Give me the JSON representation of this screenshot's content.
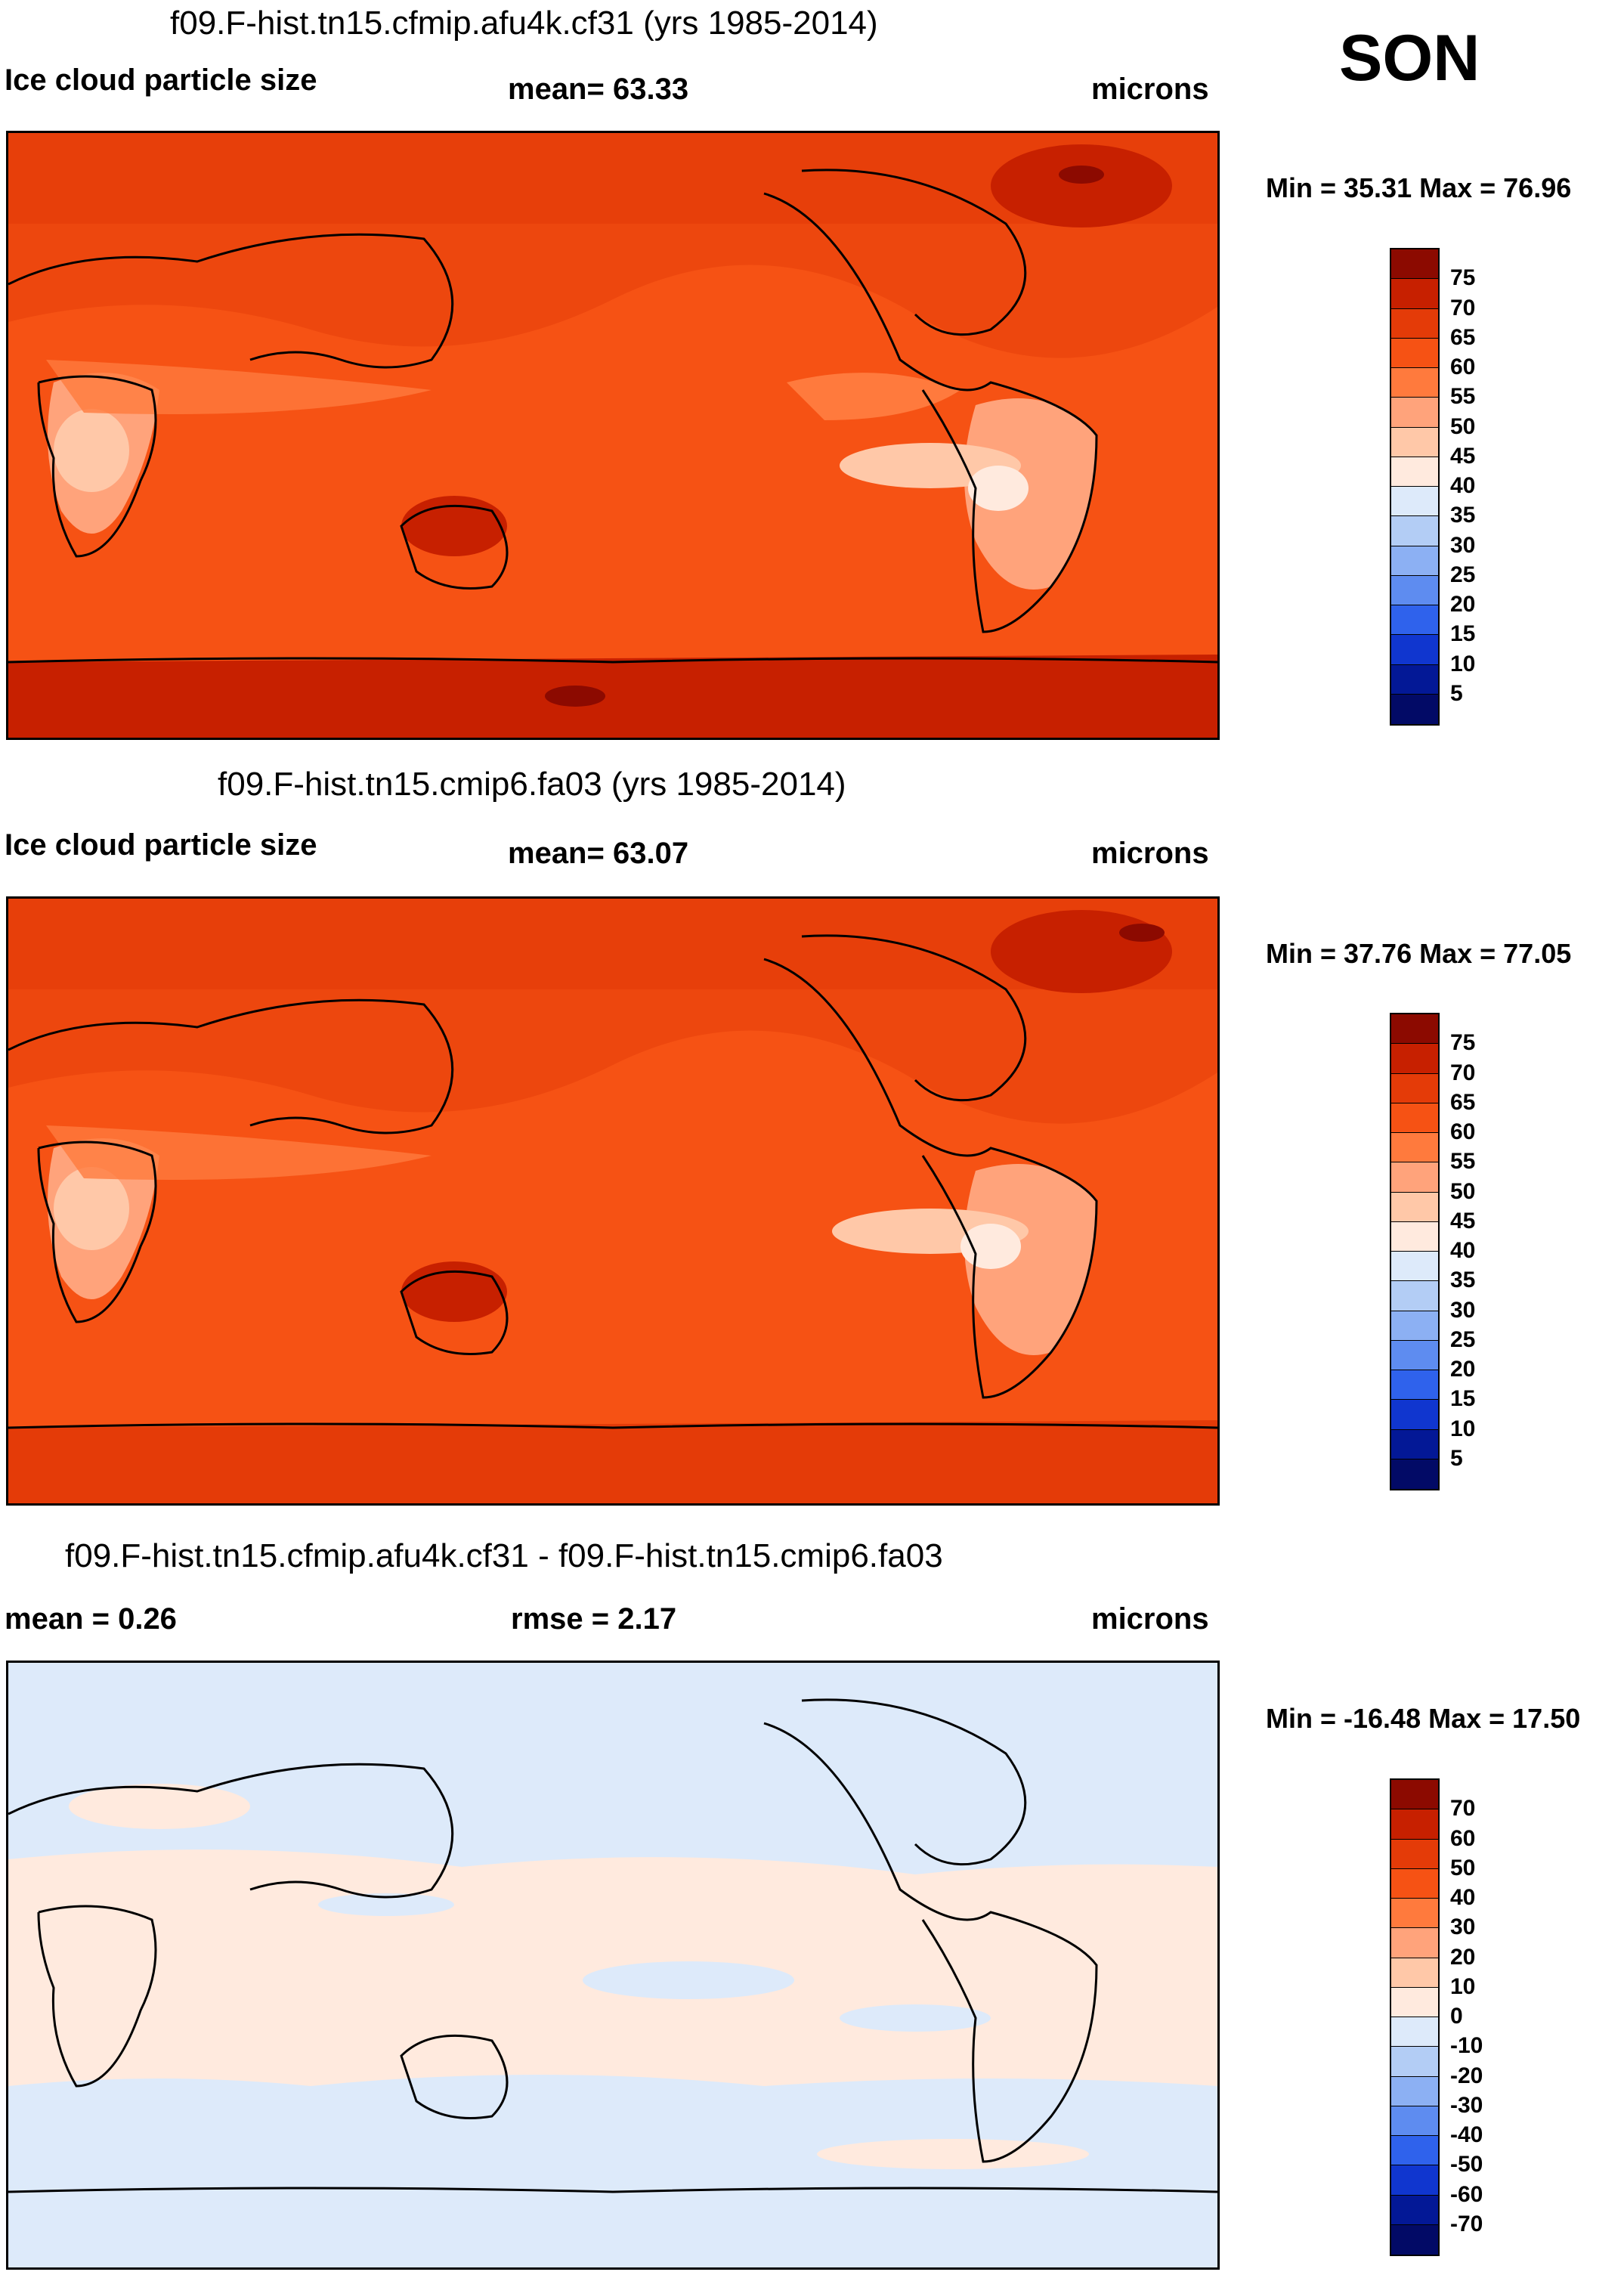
{
  "season": "SON",
  "panels": [
    {
      "id": "test",
      "title": "f09.F-hist.tn15.cfmip.afu4k.cf31 (yrs 1985-2014)",
      "left_label": "Ice cloud particle size",
      "center_label": "mean=  63.33",
      "right_label": "microns",
      "minmax": "Min =  35.31 Max =  76.96",
      "colorbar": {
        "labels": [
          "75",
          "70",
          "65",
          "60",
          "55",
          "50",
          "45",
          "40",
          "35",
          "30",
          "25",
          "20",
          "15",
          "10",
          "5"
        ],
        "colors": [
          "#8c0a00",
          "#c72000",
          "#e43b08",
          "#f65214",
          "#ff7a3d",
          "#ffa37b",
          "#ffc8a8",
          "#ffeade",
          "#ddeafa",
          "#b3cdf5",
          "#8cb0f3",
          "#5e8cf0",
          "#2f62ec",
          "#1036cf",
          "#031896",
          "#020a66"
        ]
      }
    },
    {
      "id": "control",
      "title": "f09.F-hist.tn15.cmip6.fa03 (yrs 1985-2014)",
      "left_label": "Ice cloud particle size",
      "center_label": "mean=  63.07",
      "right_label": "microns",
      "minmax": "Min =  37.76 Max =  77.05",
      "colorbar": {
        "labels": [
          "75",
          "70",
          "65",
          "60",
          "55",
          "50",
          "45",
          "40",
          "35",
          "30",
          "25",
          "20",
          "15",
          "10",
          "5"
        ],
        "colors": [
          "#8c0a00",
          "#c72000",
          "#e43b08",
          "#f65214",
          "#ff7a3d",
          "#ffa37b",
          "#ffc8a8",
          "#ffeade",
          "#ddeafa",
          "#b3cdf5",
          "#8cb0f3",
          "#5e8cf0",
          "#2f62ec",
          "#1036cf",
          "#031896",
          "#020a66"
        ]
      }
    },
    {
      "id": "difference",
      "title": "f09.F-hist.tn15.cfmip.afu4k.cf31 - f09.F-hist.tn15.cmip6.fa03",
      "left_label": "mean =   0.26",
      "center_label": "rmse =   2.17",
      "right_label": "microns",
      "minmax": "Min = -16.48 Max =  17.50",
      "colorbar": {
        "labels": [
          "70",
          "60",
          "50",
          "40",
          "30",
          "20",
          "10",
          "0",
          "-10",
          "-20",
          "-30",
          "-40",
          "-50",
          "-60",
          "-70"
        ],
        "colors": [
          "#8c0a00",
          "#c72000",
          "#e43b08",
          "#f65214",
          "#ff7a3d",
          "#ffa37b",
          "#ffc8a8",
          "#ffeade",
          "#ddeafa",
          "#b3cdf5",
          "#8cb0f3",
          "#5e8cf0",
          "#2f62ec",
          "#1036cf",
          "#031896",
          "#020a66"
        ]
      }
    }
  ],
  "map_colors": {
    "ocean_mean": "#f65214",
    "high": "#e43b08",
    "veryhigh": "#c72000",
    "max": "#8c0a00",
    "mid": "#ff7a3d",
    "low": "#ffa37b",
    "lower": "#ffc8a8",
    "lowest": "#ffeade",
    "diff_pos": "#ffeade",
    "diff_neg": "#ddeafa",
    "coast": "#000000"
  }
}
